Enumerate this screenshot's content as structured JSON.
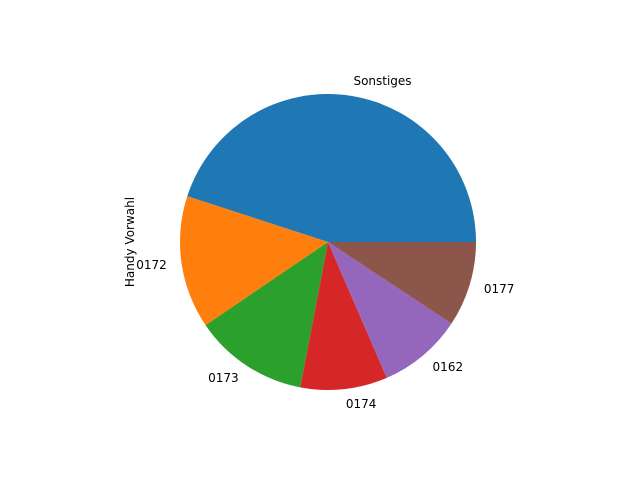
{
  "chart_data": {
    "type": "pie",
    "title": "",
    "ylabel": "Handy Vorwahl",
    "start_angle_deg": 0,
    "direction": "counterclockwise",
    "slices": [
      {
        "label": "Sonstiges",
        "value": 45.0,
        "color": "#1f77b4"
      },
      {
        "label": "0172",
        "value": 14.5,
        "color": "#ff7f0e"
      },
      {
        "label": "0173",
        "value": 12.5,
        "color": "#2ca02c"
      },
      {
        "label": "0174",
        "value": 9.5,
        "color": "#d62728"
      },
      {
        "label": "0162",
        "value": 9.2,
        "color": "#9467bd"
      },
      {
        "label": "0177",
        "value": 9.3,
        "color": "#8c564b"
      }
    ]
  }
}
